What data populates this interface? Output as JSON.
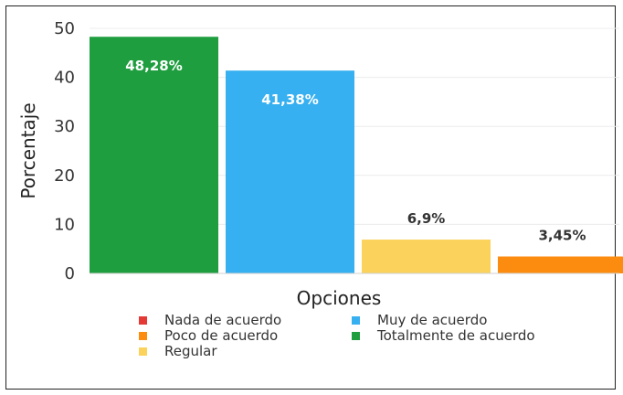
{
  "chart_data": {
    "type": "bar",
    "title": "",
    "xlabel": "Opciones",
    "ylabel": "Porcentaje",
    "ylim": [
      0,
      50
    ],
    "yticks": [
      0,
      10,
      20,
      30,
      40,
      50
    ],
    "grid": true,
    "legend_position": "bottom",
    "categories": [
      "Totalmente de acuerdo",
      "Muy de acuerdo",
      "Regular",
      "Poco de acuerdo"
    ],
    "values": [
      48.28,
      41.38,
      6.9,
      3.45
    ],
    "value_labels": [
      "48,28%",
      "41,38%",
      "6,9%",
      "3,45%"
    ],
    "colors": [
      "#1f9e3f",
      "#36b0f0",
      "#fbd35c",
      "#fb8c10"
    ],
    "legend": [
      {
        "label": "Nada de acuerdo",
        "color": "#e53935"
      },
      {
        "label": "Muy de acuerdo",
        "color": "#36b0f0"
      },
      {
        "label": "Poco de acuerdo",
        "color": "#fb8c10"
      },
      {
        "label": "Totalmente de acuerdo",
        "color": "#1f9e3f"
      },
      {
        "label": "Regular",
        "color": "#fbd35c"
      }
    ]
  }
}
